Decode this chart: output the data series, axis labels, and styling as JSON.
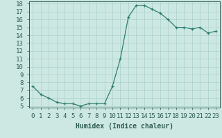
{
  "x": [
    0,
    1,
    2,
    3,
    4,
    5,
    6,
    7,
    8,
    9,
    10,
    11,
    12,
    13,
    14,
    15,
    16,
    17,
    18,
    19,
    20,
    21,
    22,
    23
  ],
  "y": [
    7.5,
    6.5,
    6.0,
    5.5,
    5.3,
    5.3,
    5.0,
    5.3,
    5.3,
    5.3,
    7.5,
    11.0,
    16.3,
    17.8,
    17.8,
    17.3,
    16.8,
    16.0,
    15.0,
    15.0,
    14.8,
    15.0,
    14.3,
    14.5
  ],
  "line_color": "#2e7d6e",
  "marker": "+",
  "background_color": "#cde8e3",
  "grid_color": "#b0d4ce",
  "xlabel": "Humidex (Indice chaleur)",
  "xlim": [
    -0.5,
    23.5
  ],
  "ylim": [
    4.8,
    18.3
  ],
  "yticks": [
    5,
    6,
    7,
    8,
    9,
    10,
    11,
    12,
    13,
    14,
    15,
    16,
    17,
    18
  ],
  "font_color": "#2e5c52",
  "xlabel_fontsize": 7,
  "tick_fontsize": 6.5
}
